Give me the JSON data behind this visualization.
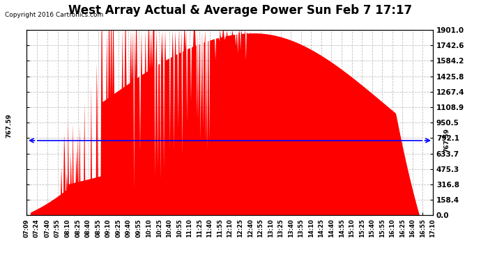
{
  "title": "West Array Actual & Average Power Sun Feb 7 17:17",
  "copyright": "Copyright 2016 Cartronics.com",
  "average_value": 767.59,
  "y_max": 1901.0,
  "y_min": 0.0,
  "y_ticks": [
    0.0,
    158.4,
    316.8,
    475.3,
    633.7,
    792.1,
    950.5,
    1108.9,
    1267.4,
    1425.8,
    1584.2,
    1742.6,
    1901.0
  ],
  "background_color": "#ffffff",
  "plot_bg_color": "#ffffff",
  "grid_color": "#bbbbbb",
  "bar_color": "#ff0000",
  "avg_line_color": "#0000ff",
  "legend_avg_bg": "#0000ff",
  "legend_west_bg": "#ff0000",
  "x_label_fontsize": 6.0,
  "y_label_fontsize": 7.5,
  "title_fontsize": 12,
  "x_tick_labels": [
    "07:09",
    "07:24",
    "07:40",
    "07:55",
    "08:10",
    "08:25",
    "08:40",
    "08:55",
    "09:10",
    "09:25",
    "09:40",
    "09:55",
    "10:10",
    "10:25",
    "10:40",
    "10:55",
    "11:10",
    "11:25",
    "11:40",
    "11:55",
    "12:10",
    "12:25",
    "12:40",
    "12:55",
    "13:10",
    "13:25",
    "13:40",
    "13:55",
    "14:10",
    "14:25",
    "14:40",
    "14:55",
    "15:10",
    "15:25",
    "15:40",
    "15:55",
    "16:10",
    "16:25",
    "16:40",
    "16:55",
    "17:10"
  ],
  "seed": 17
}
